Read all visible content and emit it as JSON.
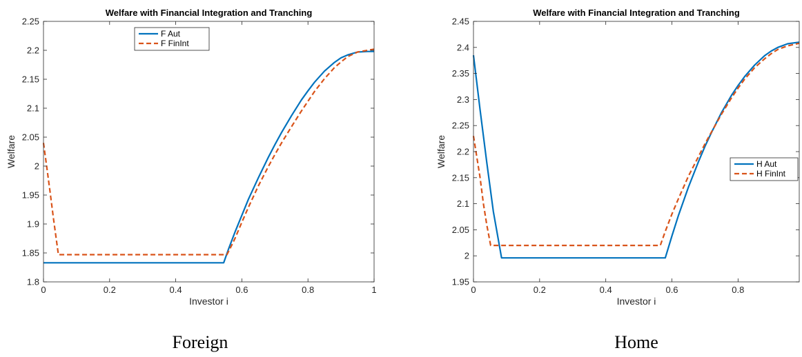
{
  "chart_data": [
    {
      "type": "line",
      "title": "Welfare with Financial Integration and Tranching",
      "xlabel": "Investor i",
      "ylabel": "Welfare",
      "caption": "Foreign",
      "xlim": [
        0,
        1
      ],
      "ylim": [
        1.8,
        2.25
      ],
      "xticks": [
        0,
        0.2,
        0.4,
        0.6,
        0.8,
        1
      ],
      "xtick_labels": [
        "0",
        "0.2",
        "0.4",
        "0.6",
        "0.8",
        "1"
      ],
      "yticks": [
        1.8,
        1.85,
        1.9,
        1.95,
        2,
        2.05,
        2.1,
        2.15,
        2.2,
        2.25
      ],
      "ytick_labels": [
        "1.8",
        "1.85",
        "1.9",
        "1.95",
        "2",
        "2.05",
        "2.1",
        "2.15",
        "2.2",
        "2.25"
      ],
      "grid": false,
      "legend_position": "top-center",
      "series": [
        {
          "name": "F Aut",
          "color": "#0072BD",
          "dash": "solid",
          "x": [
            0,
            0.1,
            0.2,
            0.3,
            0.4,
            0.5,
            0.545,
            0.56,
            0.58,
            0.6,
            0.62,
            0.65,
            0.68,
            0.7,
            0.72,
            0.75,
            0.78,
            0.8,
            0.82,
            0.85,
            0.88,
            0.9,
            0.92,
            0.95,
            0.98,
            1.0
          ],
          "y": [
            1.833,
            1.833,
            1.833,
            1.833,
            1.833,
            1.833,
            1.833,
            1.857,
            1.887,
            1.915,
            1.943,
            1.98,
            2.015,
            2.037,
            2.058,
            2.087,
            2.114,
            2.13,
            2.145,
            2.164,
            2.179,
            2.187,
            2.192,
            2.197,
            2.198,
            2.198
          ]
        },
        {
          "name": "F FinInt",
          "color": "#D95319",
          "dash": "dashed",
          "x": [
            0,
            0.01,
            0.02,
            0.03,
            0.045,
            0.1,
            0.2,
            0.3,
            0.4,
            0.5,
            0.555,
            0.57,
            0.58,
            0.6,
            0.62,
            0.65,
            0.68,
            0.7,
            0.72,
            0.75,
            0.78,
            0.8,
            0.82,
            0.85,
            0.88,
            0.9,
            0.92,
            0.95,
            0.98,
            1.0
          ],
          "y": [
            2.04,
            1.998,
            1.955,
            1.91,
            1.847,
            1.847,
            1.847,
            1.847,
            1.847,
            1.847,
            1.847,
            1.864,
            1.876,
            1.903,
            1.929,
            1.966,
            1.999,
            2.02,
            2.04,
            2.068,
            2.095,
            2.112,
            2.129,
            2.151,
            2.17,
            2.18,
            2.189,
            2.197,
            2.2,
            2.202
          ]
        }
      ]
    },
    {
      "type": "line",
      "title": "Welfare with Financial Integration and Tranching",
      "xlabel": "Investor i",
      "ylabel": "Welfare",
      "caption": "Home",
      "xlim": [
        0,
        0.985
      ],
      "ylim": [
        1.95,
        2.45
      ],
      "xticks": [
        0,
        0.2,
        0.4,
        0.6,
        0.8
      ],
      "xtick_labels": [
        "0",
        "0.2",
        "0.4",
        "0.6",
        "0.8"
      ],
      "yticks": [
        1.95,
        2,
        2.05,
        2.1,
        2.15,
        2.2,
        2.25,
        2.3,
        2.35,
        2.4,
        2.45
      ],
      "ytick_labels": [
        "1.95",
        "2",
        "2.05",
        "2.1",
        "2.15",
        "2.2",
        "2.25",
        "2.3",
        "2.35",
        "2.4",
        "2.45"
      ],
      "grid": false,
      "legend_position": "middle-right",
      "series": [
        {
          "name": "H Aut",
          "color": "#0072BD",
          "dash": "solid",
          "x": [
            0,
            0.02,
            0.04,
            0.06,
            0.085,
            0.2,
            0.3,
            0.4,
            0.5,
            0.58,
            0.6,
            0.62,
            0.65,
            0.68,
            0.7,
            0.72,
            0.75,
            0.78,
            0.8,
            0.82,
            0.85,
            0.88,
            0.9,
            0.92,
            0.95,
            0.985
          ],
          "y": [
            2.385,
            2.28,
            2.18,
            2.085,
            1.996,
            1.996,
            1.996,
            1.996,
            1.996,
            1.996,
            2.038,
            2.078,
            2.132,
            2.18,
            2.21,
            2.237,
            2.275,
            2.308,
            2.327,
            2.344,
            2.366,
            2.384,
            2.393,
            2.4,
            2.407,
            2.41
          ]
        },
        {
          "name": "H FinInt",
          "color": "#D95319",
          "dash": "dashed",
          "x": [
            0,
            0.01,
            0.02,
            0.03,
            0.04,
            0.052,
            0.1,
            0.2,
            0.3,
            0.4,
            0.5,
            0.565,
            0.58,
            0.6,
            0.62,
            0.65,
            0.68,
            0.7,
            0.72,
            0.75,
            0.78,
            0.8,
            0.82,
            0.85,
            0.88,
            0.9,
            0.92,
            0.95,
            0.985
          ],
          "y": [
            2.23,
            2.19,
            2.15,
            2.1,
            2.06,
            2.02,
            2.02,
            2.02,
            2.02,
            2.02,
            2.02,
            2.02,
            2.047,
            2.08,
            2.11,
            2.153,
            2.19,
            2.215,
            2.238,
            2.272,
            2.303,
            2.322,
            2.339,
            2.361,
            2.378,
            2.388,
            2.396,
            2.403,
            2.408
          ]
        }
      ]
    }
  ]
}
